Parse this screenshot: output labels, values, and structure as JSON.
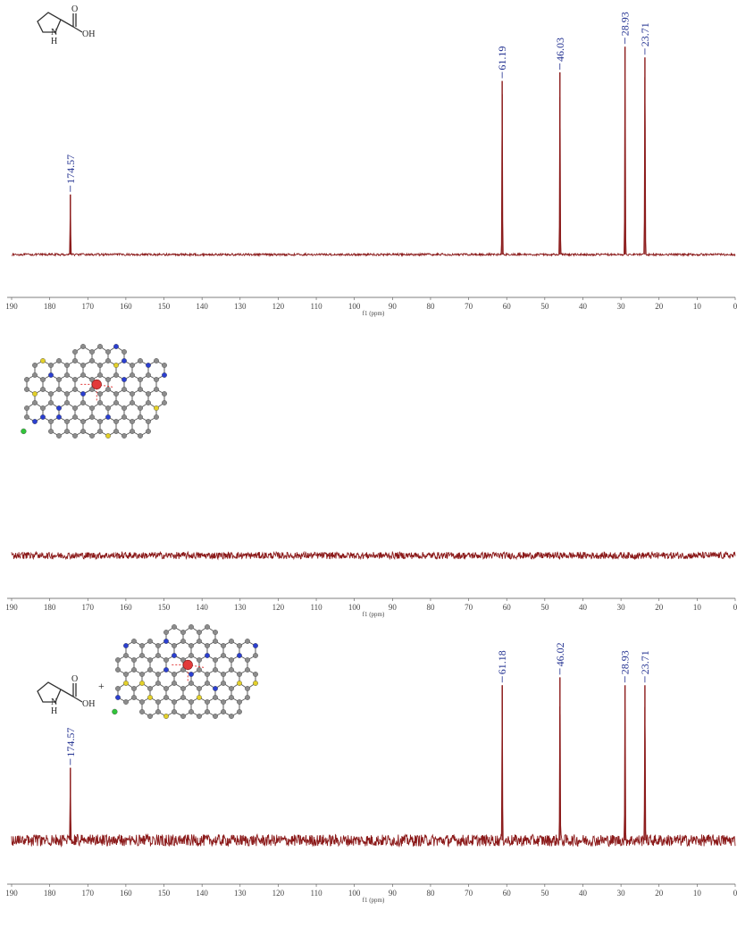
{
  "chart_data": [
    {
      "type": "line",
      "title": "",
      "xlabel": "f1 (ppm)",
      "ylabel": "",
      "xlim": [
        190,
        0
      ],
      "x_reversed": true,
      "x_ticks": [
        190,
        180,
        170,
        160,
        150,
        140,
        130,
        120,
        110,
        100,
        90,
        80,
        70,
        60,
        50,
        40,
        30,
        20,
        10,
        0
      ],
      "ylim": [
        0,
        1
      ],
      "grid": false,
      "legend": "none",
      "noise_level": 0.01,
      "series": [
        {
          "peaks": [
            {
              "ppm": 174.57,
              "label": "174.57",
              "intensity": 0.28
            },
            {
              "ppm": 61.19,
              "label": "61.19",
              "intensity": 0.81
            },
            {
              "ppm": 46.03,
              "label": "46.03",
              "intensity": 0.85
            },
            {
              "ppm": 28.93,
              "label": "28.93",
              "intensity": 0.97
            },
            {
              "ppm": 23.71,
              "label": "23.71",
              "intensity": 0.92
            }
          ]
        }
      ],
      "inset": "proline-structure"
    },
    {
      "type": "line",
      "title": "",
      "xlabel": "f1 (ppm)",
      "ylabel": "",
      "xlim": [
        190,
        0
      ],
      "x_reversed": true,
      "x_ticks": [
        190,
        180,
        170,
        160,
        150,
        140,
        130,
        120,
        110,
        100,
        90,
        80,
        70,
        60,
        50,
        40,
        30,
        20,
        10,
        0
      ],
      "ylim": [
        0,
        1
      ],
      "grid": false,
      "legend": "none",
      "noise_level": 0.035,
      "series": [
        {
          "peaks": []
        }
      ],
      "inset": "catalyst-structure"
    },
    {
      "type": "line",
      "title": "",
      "xlabel": "f1 (ppm)",
      "ylabel": "",
      "xlim": [
        190,
        0
      ],
      "x_reversed": true,
      "x_ticks": [
        190,
        180,
        170,
        160,
        150,
        140,
        130,
        120,
        110,
        100,
        90,
        80,
        70,
        60,
        50,
        40,
        30,
        20,
        10,
        0
      ],
      "ylim": [
        0,
        1
      ],
      "grid": false,
      "legend": "none",
      "noise_level": 0.06,
      "series": [
        {
          "peaks": [
            {
              "ppm": 174.57,
              "label": "174.57",
              "intensity": 0.37
            },
            {
              "ppm": 61.18,
              "label": "61.18",
              "intensity": 0.79
            },
            {
              "ppm": 46.02,
              "label": "46.02",
              "intensity": 0.83
            },
            {
              "ppm": 28.93,
              "label": "28.93",
              "intensity": 0.79
            },
            {
              "ppm": 23.71,
              "label": "23.71",
              "intensity": 0.79
            }
          ]
        }
      ],
      "inset": "proline-plus-catalyst",
      "inset_labels": [
        "+"
      ]
    }
  ],
  "molecule_labels": {
    "oxygen": "O",
    "hydroxyl": "OH",
    "amine_n": "N",
    "amine_h": "H"
  },
  "colors": {
    "spectrum": "#8b1a1a",
    "peak_label": "#1f2e8f",
    "axis": "#555555",
    "tick_label": "#444444",
    "atom_c": "#8c8c8c",
    "atom_n": "#2b3fd0",
    "atom_s": "#e3d02a",
    "atom_cl": "#31c43a",
    "atom_metal": "#e23a3a",
    "bond": "#5a5a5a"
  }
}
